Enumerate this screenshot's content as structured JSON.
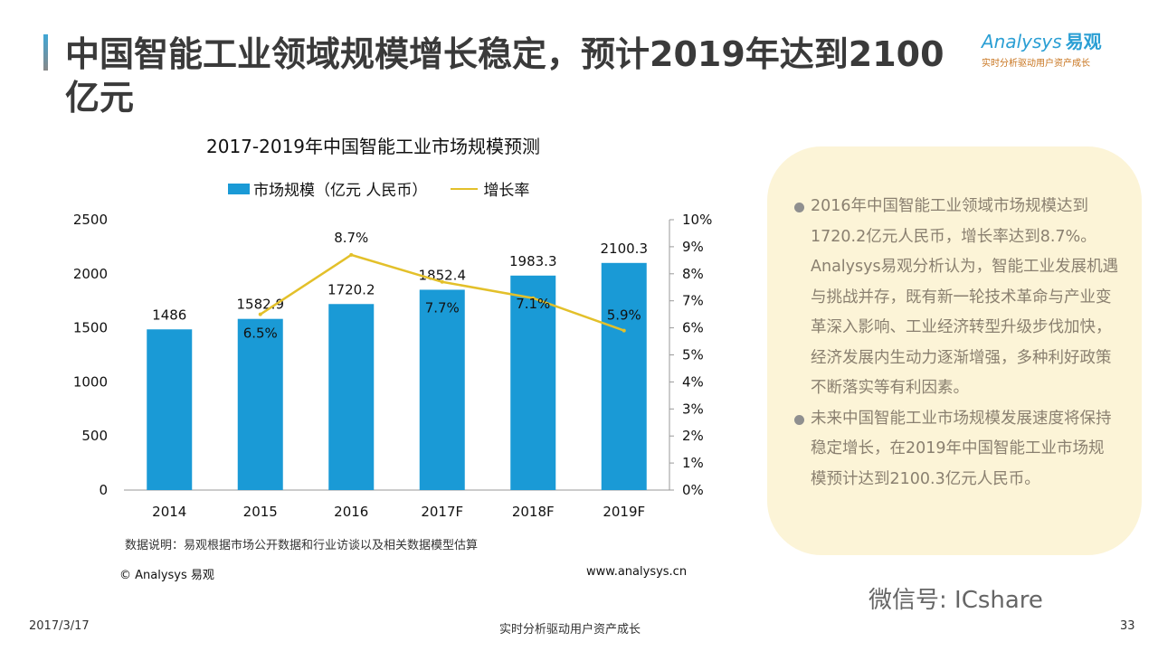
{
  "title": "中国智能工业领域规模增长稳定，预计2019年达到2100亿元",
  "logo": {
    "en": "Analysys",
    "cn": "易观",
    "tagline": "实时分析驱动用户资产成长"
  },
  "chart_data": {
    "type": "bar+line",
    "title": "2017-2019年中国智能工业市场规模预测",
    "categories": [
      "2014",
      "2015",
      "2016",
      "2017F",
      "2018F",
      "2019F"
    ],
    "series": [
      {
        "name": "市场规模（亿元 人民币）",
        "type": "bar",
        "axis": "left",
        "values": [
          1486,
          1582.9,
          1720.2,
          1852.4,
          1983.3,
          2100.3
        ],
        "labels": [
          "1486",
          "1582.9",
          "1720.2",
          "1852.4",
          "1983.3",
          "2100.3"
        ],
        "color": "#1a9ad6"
      },
      {
        "name": "增长率",
        "type": "line",
        "axis": "right",
        "values": [
          null,
          6.5,
          8.7,
          7.7,
          7.1,
          5.9
        ],
        "labels": [
          "",
          "6.5%",
          "8.7%",
          "7.7%",
          "7.1%",
          "5.9%"
        ],
        "color": "#e3c02a"
      }
    ],
    "ylim": [
      0,
      2500
    ],
    "yticks": [
      "0",
      "500",
      "1000",
      "1500",
      "2000",
      "2500"
    ],
    "y2lim": [
      0,
      10
    ],
    "y2ticks": [
      "0%",
      "1%",
      "2%",
      "3%",
      "4%",
      "5%",
      "6%",
      "7%",
      "8%",
      "9%",
      "10%"
    ],
    "grid": false,
    "legend": "top"
  },
  "note": "数据说明：易观根据市场公开数据和行业访谈以及相关数据模型估算",
  "copyright": "© Analysys 易观",
  "site": "www.analysys.cn",
  "box": [
    "2016年中国智能工业领域市场规模达到1720.2亿元人民币，增长率达到8.7%。Analysys易观分析认为，智能工业发展机遇与挑战并存，既有新一轮技术革命与产业变革深入影响、工业经济转型升级步伐加快，经济发展内生动力逐渐增强，多种利好政策不断落实等有利因素。",
    "未来中国智能工业市场规模发展速度将保持稳定增长，在2019年中国智能工业市场规模预计达到2100.3亿元人民币。"
  ],
  "watermark": "微信号: ICshare",
  "footer": {
    "date": "2017/3/17",
    "center": "实时分析驱动用户资产成长",
    "page": "33"
  }
}
